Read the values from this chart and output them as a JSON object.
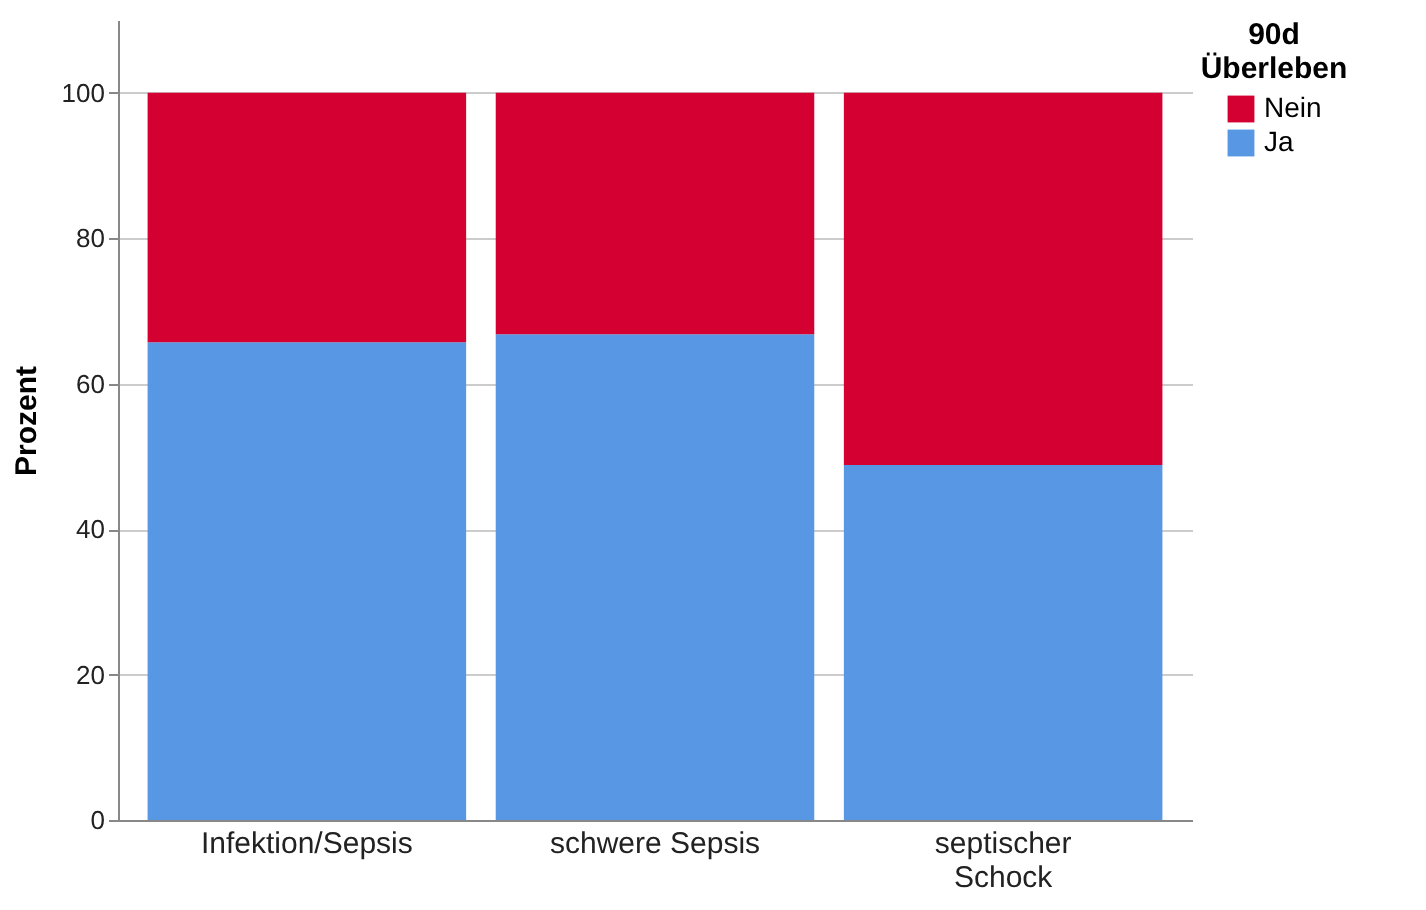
{
  "chart_data": {
    "type": "bar",
    "stacked": true,
    "ylabel": "Prozent",
    "legend_title": "90d Überleben",
    "legend": "top right",
    "grid": "y",
    "categories": [
      "Infektion/Sepsis",
      "schwere Sepsis",
      "septischer Schock"
    ],
    "series": [
      {
        "name": "Ja",
        "color": "#5797e3",
        "values": [
          65.7,
          66.8,
          48.8
        ]
      },
      {
        "name": "Nein",
        "color": "#d50032",
        "values": [
          34.3,
          33.2,
          51.2
        ]
      }
    ],
    "ylim": [
      0,
      110
    ],
    "yticks": [
      0,
      20,
      40,
      60,
      80,
      100
    ]
  }
}
